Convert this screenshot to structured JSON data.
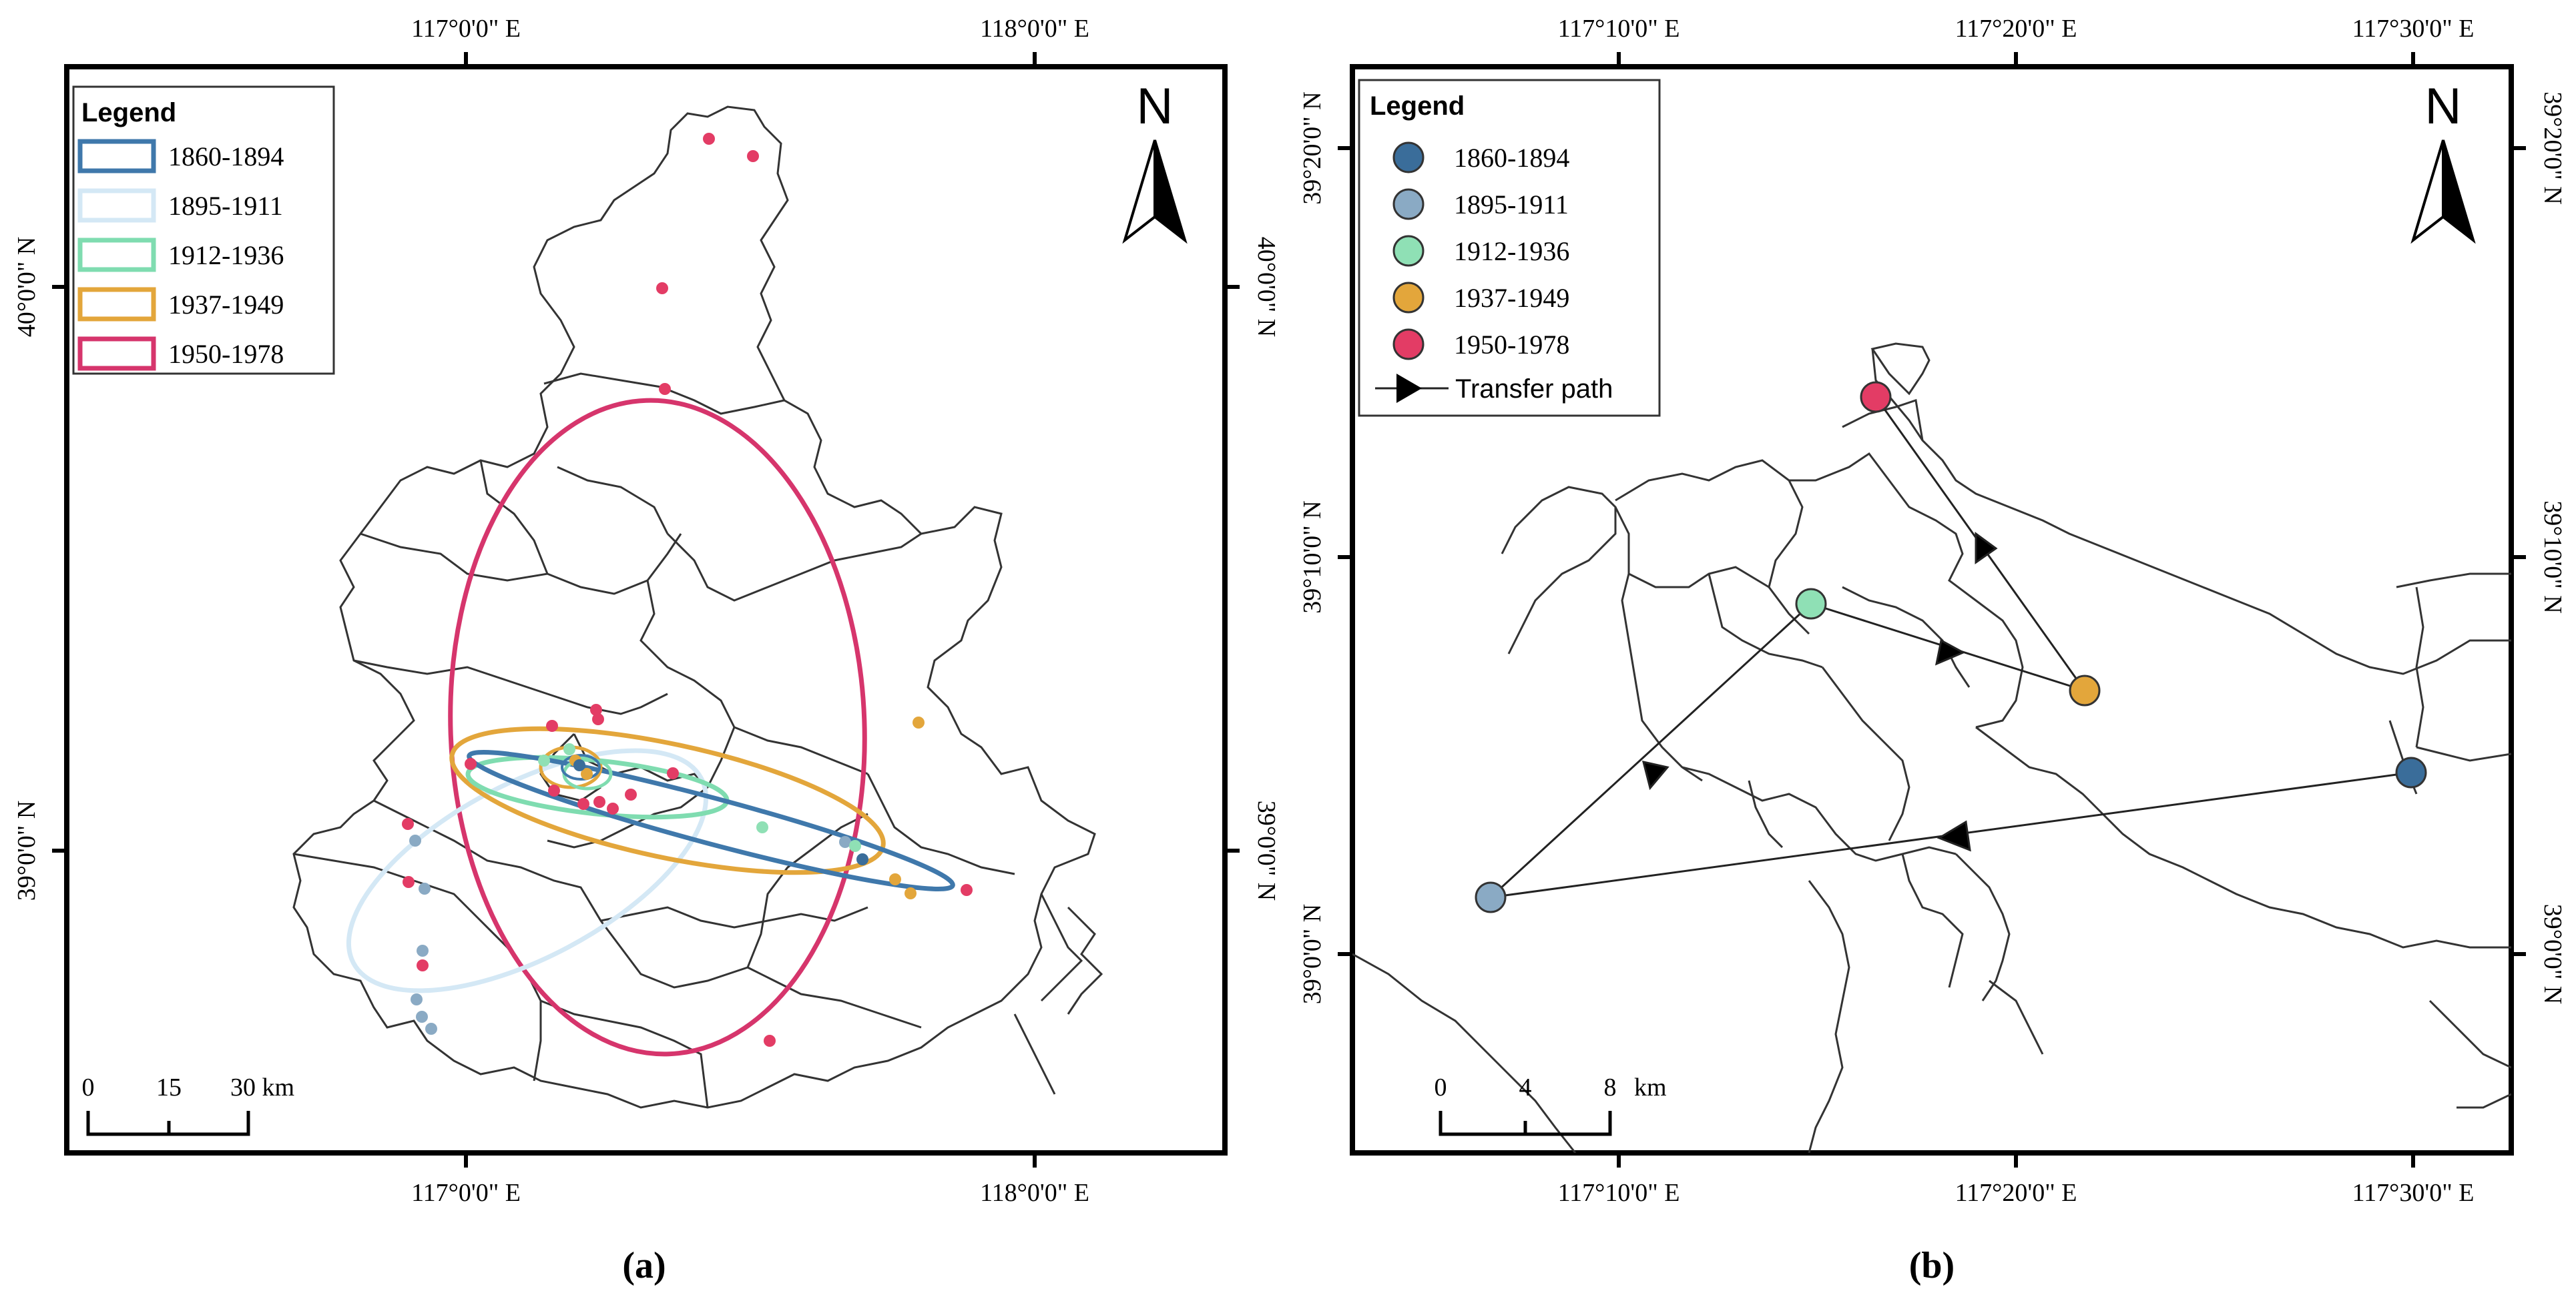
{
  "colors": {
    "period_1860_1894": "#3a6d9a",
    "period_1895_1911": "#8aaac4",
    "period_1912_1936": "#8fe0b5",
    "period_1937_1949": "#e3a63b",
    "period_1950_1978": "#e33c65",
    "ellipse_1895_1911": "#d4e8f5",
    "ellipse_1912_1936": "#7fdcb0",
    "ellipse_1860_1894": "#3f78ab",
    "ellipse_1950_1978": "#d6356c",
    "boundary": "#333333",
    "frame": "#000000"
  },
  "panel_a": {
    "caption": "(a)",
    "legend": {
      "title": "Legend",
      "items": [
        {
          "label": "1860-1894",
          "key": "period_1860_1894"
        },
        {
          "label": "1895-1911",
          "key": "period_1895_1911"
        },
        {
          "label": "1912-1936",
          "key": "period_1912_1936"
        },
        {
          "label": "1937-1949",
          "key": "period_1937_1949"
        },
        {
          "label": "1950-1978",
          "key": "period_1950_1978"
        }
      ]
    },
    "north_label": "N",
    "x_ticks": [
      "117°0'0\" E",
      "118°0'0\" E"
    ],
    "y_ticks": [
      "40°0'0\" N",
      "39°0'0\" N"
    ],
    "scale_bar": {
      "labels": [
        "0",
        "15",
        "30 km"
      ]
    }
  },
  "panel_b": {
    "caption": "(b)",
    "legend": {
      "title": "Legend",
      "items": [
        {
          "label": "1860-1894",
          "key": "period_1860_1894"
        },
        {
          "label": "1895-1911",
          "key": "period_1895_1911"
        },
        {
          "label": "1912-1936",
          "key": "period_1912_1936"
        },
        {
          "label": "1937-1949",
          "key": "period_1937_1949"
        },
        {
          "label": "1950-1978",
          "key": "period_1950_1978"
        }
      ],
      "path_label": "Transfer path"
    },
    "north_label": "N",
    "x_ticks": [
      "117°10'0\" E",
      "117°20'0\" E",
      "117°30'0\" E"
    ],
    "y_ticks": [
      "39°20'0\" N",
      "39°10'0\" N",
      "39°0'0\" N"
    ],
    "scale_bar": {
      "labels": [
        "0",
        "4",
        "8",
        "km"
      ]
    }
  }
}
